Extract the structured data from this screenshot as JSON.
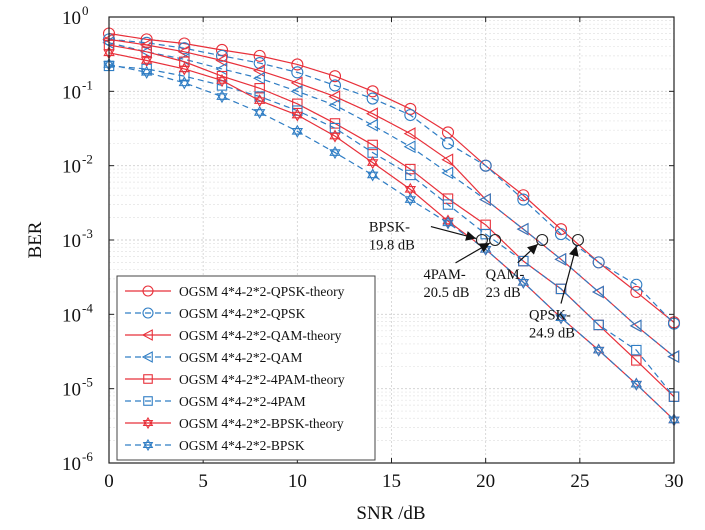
{
  "chart_data": {
    "type": "line",
    "xlabel": "SNR /dB",
    "ylabel": "BER",
    "xlim": [
      0,
      30
    ],
    "ylim": [
      1e-06,
      1
    ],
    "yscale": "log",
    "grid": true,
    "legend_position": "bottom-left",
    "xticks": [
      "0",
      "5",
      "10",
      "15",
      "20",
      "25",
      "30"
    ],
    "ytick_base": "10",
    "yticks": [
      {
        "value": 1,
        "exponent": "0"
      },
      {
        "value": 0.1,
        "exponent": "-1"
      },
      {
        "value": 0.01,
        "exponent": "-2"
      },
      {
        "value": 0.001,
        "exponent": "-3"
      },
      {
        "value": 0.0001,
        "exponent": "-4"
      },
      {
        "value": 1e-05,
        "exponent": "-5"
      },
      {
        "value": 1e-06,
        "exponent": "-6"
      }
    ],
    "colors": {
      "theory": "#e8303a",
      "sim": "#2f7dc4"
    },
    "x": [
      0,
      2,
      4,
      6,
      8,
      10,
      12,
      14,
      16,
      18,
      20,
      22,
      24,
      26,
      28,
      30
    ],
    "series": [
      {
        "name": "OGSM 4*4-2*2-QPSK-theory",
        "color": "#e8303a",
        "dash": false,
        "marker": "circle",
        "values": [
          0.6,
          0.5,
          0.44,
          0.36,
          0.3,
          0.23,
          0.16,
          0.1,
          0.058,
          0.028,
          0.01,
          0.004,
          0.0014,
          0.0005,
          0.0002,
          7.8e-05
        ]
      },
      {
        "name": "OGSM 4*4-2*2-QPSK",
        "color": "#2f7dc4",
        "dash": true,
        "marker": "circle",
        "values": [
          0.5,
          0.45,
          0.38,
          0.3,
          0.24,
          0.18,
          0.12,
          0.08,
          0.048,
          0.02,
          0.01,
          0.0035,
          0.0012,
          0.0005,
          0.00025,
          7.5e-05
        ]
      },
      {
        "name": "OGSM 4*4-2*2-QAM-theory",
        "color": "#e8303a",
        "dash": false,
        "marker": "triangle-left",
        "values": [
          0.5,
          0.42,
          0.34,
          0.26,
          0.19,
          0.13,
          0.085,
          0.05,
          0.027,
          0.012,
          0.0035,
          0.0014,
          0.00055,
          0.0002,
          7e-05,
          2.7e-05
        ]
      },
      {
        "name": "OGSM 4*4-2*2-QAM",
        "color": "#2f7dc4",
        "dash": true,
        "marker": "triangle-left",
        "values": [
          0.45,
          0.34,
          0.27,
          0.2,
          0.15,
          0.1,
          0.065,
          0.035,
          0.018,
          0.008,
          0.0035,
          0.0014,
          0.00055,
          0.0002,
          7e-05,
          2.7e-05
        ]
      },
      {
        "name": "OGSM 4*4-2*2-4PAM-theory",
        "color": "#e8303a",
        "dash": false,
        "marker": "square",
        "values": [
          0.42,
          0.34,
          0.25,
          0.16,
          0.11,
          0.068,
          0.037,
          0.019,
          0.009,
          0.0036,
          0.0016,
          0.00052,
          0.00022,
          7.2e-05,
          2.4e-05,
          7.8e-06
        ]
      },
      {
        "name": "OGSM 4*4-2*2-4PAM",
        "color": "#2f7dc4",
        "dash": true,
        "marker": "square",
        "values": [
          0.22,
          0.2,
          0.16,
          0.12,
          0.085,
          0.055,
          0.032,
          0.015,
          0.0075,
          0.003,
          0.0012,
          0.00052,
          0.00022,
          7.2e-05,
          3.3e-05,
          7.8e-06
        ]
      },
      {
        "name": "OGSM 4*4-2*2-BPSK-theory",
        "color": "#e8303a",
        "dash": false,
        "marker": "hexagram",
        "values": [
          0.33,
          0.26,
          0.2,
          0.14,
          0.075,
          0.048,
          0.025,
          0.011,
          0.0048,
          0.0018,
          0.00075,
          0.00027,
          9e-05,
          3.3e-05,
          1.15e-05,
          3.8e-06
        ]
      },
      {
        "name": "OGSM 4*4-2*2-BPSK",
        "color": "#2f7dc4",
        "dash": true,
        "marker": "hexagram",
        "values": [
          0.23,
          0.18,
          0.13,
          0.085,
          0.052,
          0.029,
          0.015,
          0.0075,
          0.0035,
          0.0017,
          0.00075,
          0.00027,
          9e-05,
          3.3e-05,
          1.15e-05,
          3.8e-06
        ]
      }
    ],
    "annotations": [
      {
        "lines": [
          "BPSK-",
          "19.8 dB"
        ],
        "point": [
          19.8,
          0.001
        ],
        "text_anchor_data": [
          13.8,
          0.0013
        ]
      },
      {
        "lines": [
          "4PAM-",
          "20.5 dB"
        ],
        "point": [
          20.5,
          0.001
        ],
        "text_anchor_data": [
          16.7,
          0.0003
        ]
      },
      {
        "lines": [
          "QAM-",
          "23 dB"
        ],
        "point": [
          23,
          0.001
        ],
        "text_anchor_data": [
          20,
          0.0003
        ]
      },
      {
        "lines": [
          "QPSK-",
          "24.9 dB"
        ],
        "point": [
          24.9,
          0.001
        ],
        "text_anchor_data": [
          22.3,
          8.5e-05
        ]
      }
    ]
  }
}
